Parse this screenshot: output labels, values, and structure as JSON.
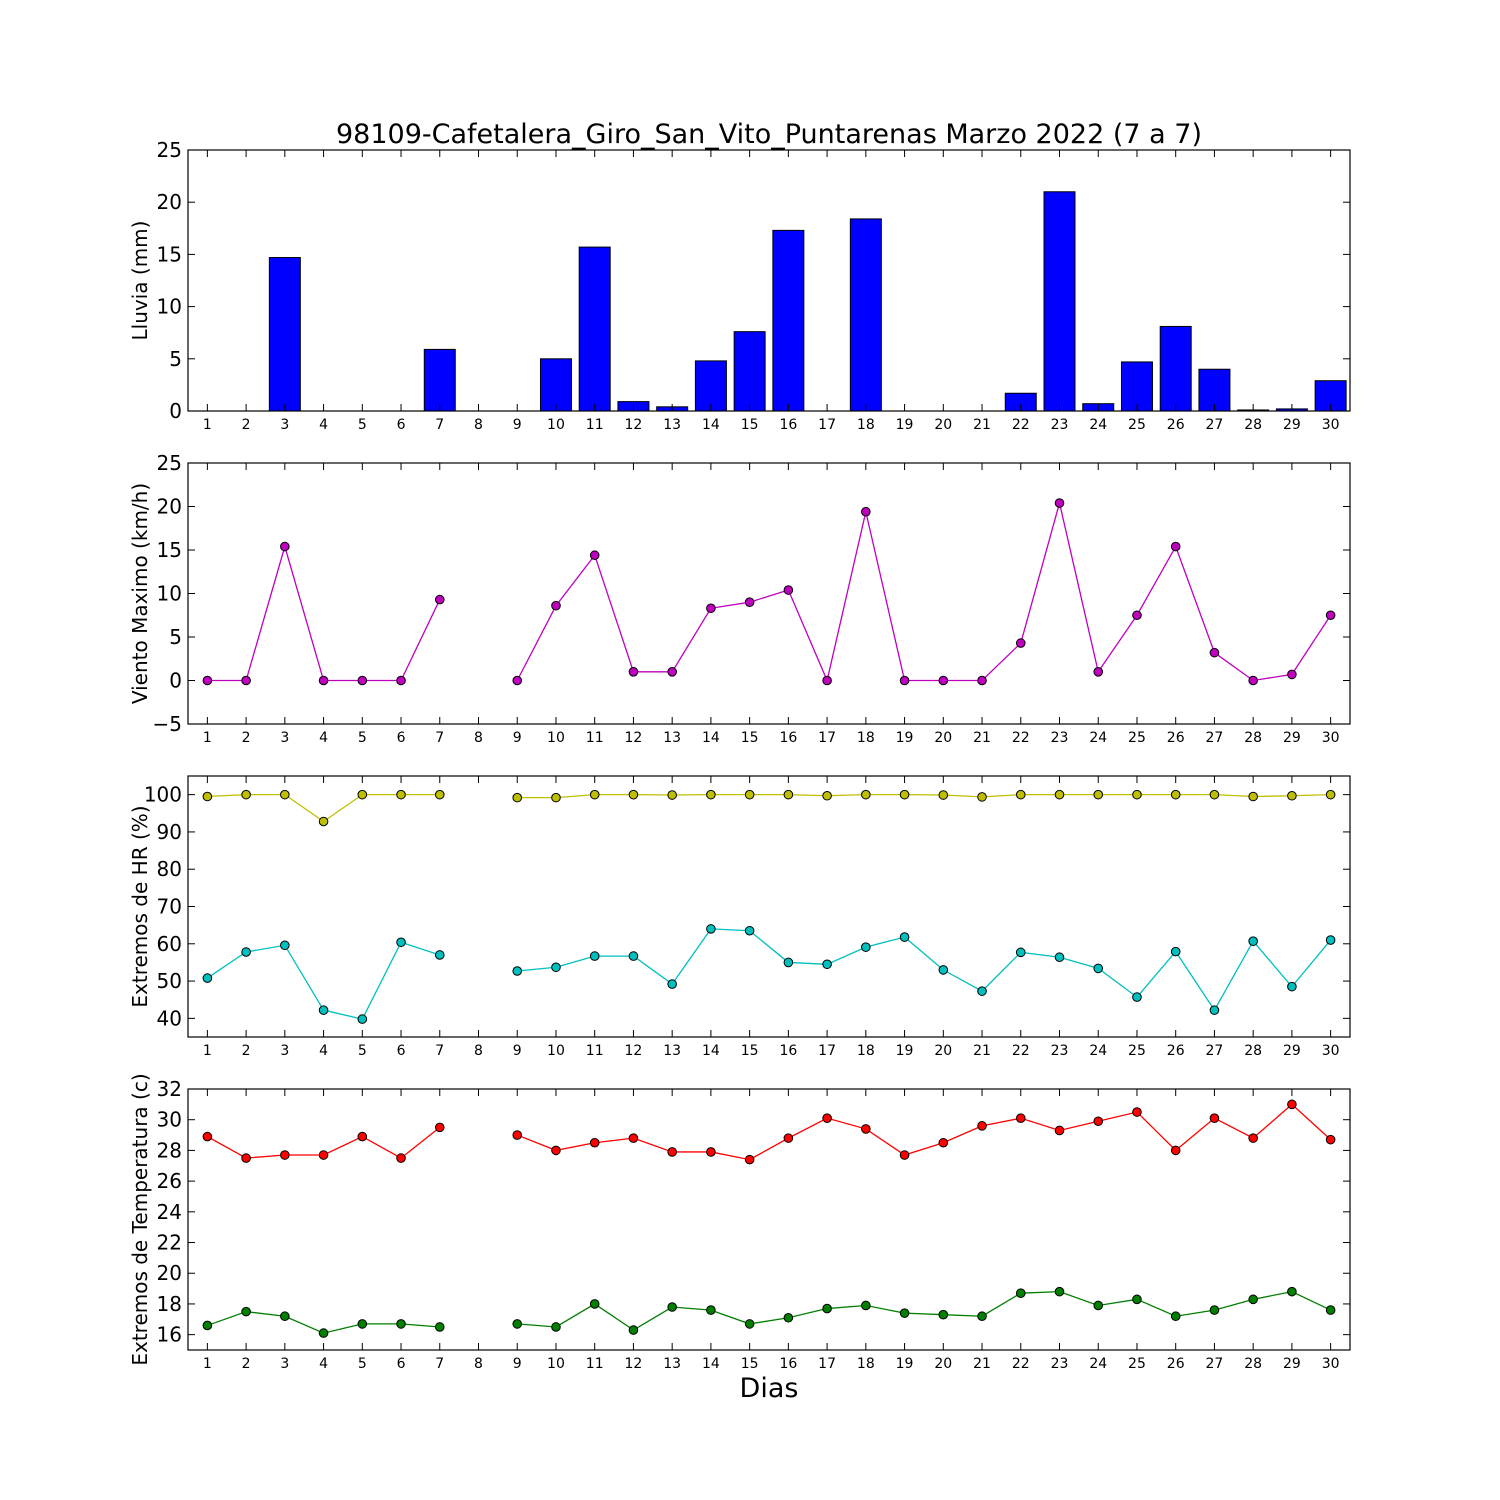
{
  "figure": {
    "title": "98109-Cafetalera_Giro_San_Vito_Puntarenas Marzo 2022  (7 a 7)",
    "xlabel": "Dias"
  },
  "chart_data": [
    {
      "type": "bar",
      "ylabel": "Lluvia (mm)",
      "ylim": [
        0,
        25
      ],
      "yticks": [
        0,
        5,
        10,
        15,
        20,
        25
      ],
      "xlim": [
        0.5,
        30.5
      ],
      "categories": [
        1,
        2,
        3,
        4,
        5,
        6,
        7,
        8,
        9,
        10,
        11,
        12,
        13,
        14,
        15,
        16,
        17,
        18,
        19,
        20,
        21,
        22,
        23,
        24,
        25,
        26,
        27,
        28,
        29,
        30
      ],
      "values": [
        0,
        0,
        14.7,
        0,
        0,
        0,
        5.9,
        0,
        0,
        5.0,
        15.7,
        0.9,
        0.4,
        4.8,
        7.6,
        17.3,
        0,
        18.4,
        0,
        0,
        0,
        1.7,
        21.0,
        0.7,
        4.7,
        8.1,
        4.0,
        0.1,
        0.2,
        2.9
      ],
      "color": "#0000ff"
    },
    {
      "type": "line",
      "ylabel": "Viento Maximo (km/h)",
      "ylim": [
        -5,
        25
      ],
      "yticks": [
        -5,
        0,
        5,
        10,
        15,
        20,
        25
      ],
      "xlim": [
        0.5,
        30.5
      ],
      "x": [
        1,
        2,
        3,
        4,
        5,
        6,
        7,
        8,
        9,
        10,
        11,
        12,
        13,
        14,
        15,
        16,
        17,
        18,
        19,
        20,
        21,
        22,
        23,
        24,
        25,
        26,
        27,
        28,
        29,
        30
      ],
      "series": [
        {
          "values": [
            0,
            0,
            15.4,
            0,
            0,
            0,
            9.3,
            null,
            0,
            8.6,
            14.4,
            1.0,
            1.0,
            8.3,
            9.0,
            10.4,
            0,
            19.4,
            0,
            0,
            0,
            4.3,
            20.4,
            1.0,
            7.5,
            15.4,
            3.2,
            0,
            0.7,
            7.5
          ],
          "color": "#bf00bf"
        }
      ]
    },
    {
      "type": "line",
      "ylabel": "Extremos de HR (%)",
      "ylim": [
        35,
        105
      ],
      "yticks": [
        40,
        50,
        60,
        70,
        80,
        90,
        100
      ],
      "xlim": [
        0.5,
        30.5
      ],
      "x": [
        1,
        2,
        3,
        4,
        5,
        6,
        7,
        8,
        9,
        10,
        11,
        12,
        13,
        14,
        15,
        16,
        17,
        18,
        19,
        20,
        21,
        22,
        23,
        24,
        25,
        26,
        27,
        28,
        29,
        30
      ],
      "series": [
        {
          "values": [
            99.5,
            100,
            100,
            92.8,
            100,
            100,
            100,
            null,
            99.2,
            99.2,
            100,
            100,
            99.9,
            100,
            100,
            100,
            99.7,
            100,
            100,
            99.9,
            99.4,
            100,
            100,
            100,
            100,
            100,
            100,
            99.5,
            99.7,
            100
          ],
          "color": "#bfbf00"
        },
        {
          "values": [
            50.8,
            57.8,
            59.6,
            42.2,
            39.8,
            60.4,
            57.0,
            null,
            52.7,
            53.7,
            56.7,
            56.7,
            49.2,
            64.0,
            63.5,
            55.0,
            54.5,
            59.1,
            61.8,
            53.0,
            47.3,
            57.7,
            56.4,
            53.4,
            45.7,
            57.9,
            42.2,
            60.7,
            48.5,
            61.0
          ],
          "color": "#00bfbf"
        }
      ]
    },
    {
      "type": "line",
      "ylabel": "Extremos de Temperatura (c)",
      "ylim": [
        15,
        32
      ],
      "yticks": [
        16,
        18,
        20,
        22,
        24,
        26,
        28,
        30,
        32
      ],
      "xlim": [
        0.5,
        30.5
      ],
      "x": [
        1,
        2,
        3,
        4,
        5,
        6,
        7,
        8,
        9,
        10,
        11,
        12,
        13,
        14,
        15,
        16,
        17,
        18,
        19,
        20,
        21,
        22,
        23,
        24,
        25,
        26,
        27,
        28,
        29,
        30
      ],
      "series": [
        {
          "values": [
            28.9,
            27.5,
            27.7,
            27.7,
            28.9,
            27.5,
            29.5,
            null,
            29.0,
            28.0,
            28.5,
            28.8,
            27.9,
            27.9,
            27.4,
            28.8,
            30.1,
            29.4,
            27.7,
            28.5,
            29.6,
            30.1,
            29.3,
            29.9,
            30.5,
            28.0,
            30.1,
            28.8,
            31.0,
            28.7
          ],
          "color": "#ff0000"
        },
        {
          "values": [
            16.6,
            17.5,
            17.2,
            16.1,
            16.7,
            16.7,
            16.5,
            null,
            16.7,
            16.5,
            18.0,
            16.3,
            17.8,
            17.6,
            16.7,
            17.1,
            17.7,
            17.9,
            17.4,
            17.3,
            17.2,
            18.7,
            18.8,
            17.9,
            18.3,
            17.2,
            17.6,
            18.3,
            18.8,
            17.6
          ],
          "color": "#007f00"
        }
      ]
    }
  ]
}
